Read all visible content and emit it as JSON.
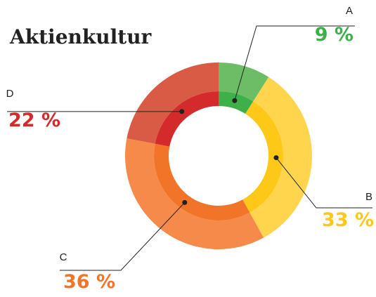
{
  "chart_data": {
    "type": "donut",
    "title": "Aktienkultur",
    "categories": [
      "A",
      "B",
      "C",
      "D"
    ],
    "values": [
      9,
      33,
      36,
      22
    ],
    "value_labels": [
      "9 %",
      "33 %",
      "36 %",
      "22 %"
    ],
    "colors": [
      "#3fb049",
      "#fdc818",
      "#f17428",
      "#d52a2b"
    ],
    "outer_colors": [
      "#6dbd66",
      "#ffd54e",
      "#f68a4a",
      "#d95b45"
    ]
  }
}
